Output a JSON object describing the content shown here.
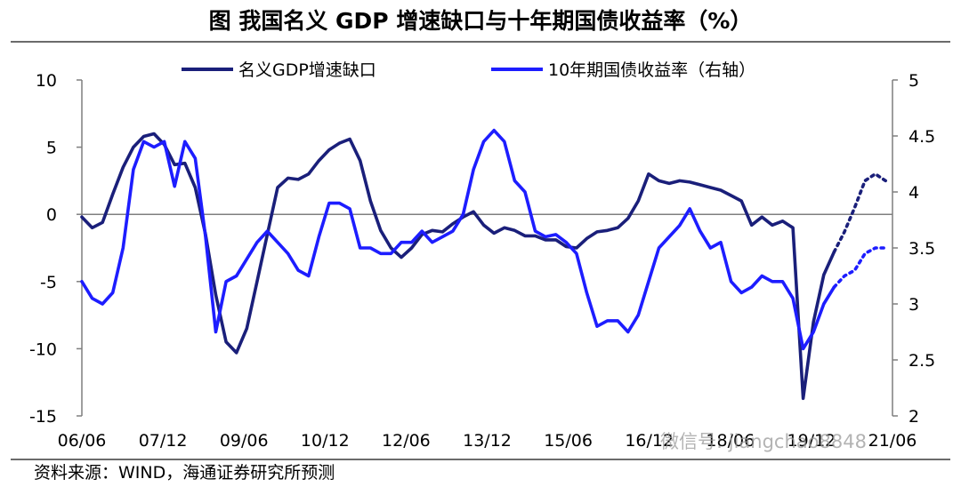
{
  "title": "图  我国名义 GDP 增速缺口与十年期国债收益率（%）",
  "footer": "资料来源：WIND，海通证券研究所预测",
  "watermark": "微信号: jiangchao8848",
  "colors": {
    "gdp_gap": "#1a1f7a",
    "bond_yield": "#1d1dff",
    "axis": "#7f7f7f",
    "zero_line": "#7f7f7f"
  },
  "chart_data": {
    "type": "line",
    "title": "我国名义 GDP 增速缺口与十年期国债收益率（%）",
    "x_tick_labels": [
      "06/06",
      "07/12",
      "09/06",
      "10/12",
      "12/06",
      "13/12",
      "15/06",
      "16/12",
      "18/06",
      "19/12",
      "21/06"
    ],
    "y_left": {
      "ticks": [
        10,
        5,
        0,
        -5,
        -10,
        -15
      ],
      "ylim": [
        -15,
        10
      ]
    },
    "y_right": {
      "ticks": [
        5,
        4.5,
        4,
        3.5,
        3,
        2.5,
        2
      ],
      "ylim": [
        2,
        5
      ]
    },
    "legend_position": "top-center",
    "grid": false,
    "series": [
      {
        "name": "名义GDP增速缺口",
        "axis": "left",
        "points": [
          [
            0,
            -0.2
          ],
          [
            0.3,
            -1.0
          ],
          [
            0.6,
            -0.6
          ],
          [
            0.9,
            1.5
          ],
          [
            1.2,
            3.5
          ],
          [
            1.5,
            5.0
          ],
          [
            1.8,
            5.8
          ],
          [
            2.1,
            6.0
          ],
          [
            2.4,
            5.2
          ],
          [
            2.7,
            3.7
          ],
          [
            3.0,
            3.8
          ],
          [
            3.3,
            2.0
          ],
          [
            3.6,
            -1.5
          ],
          [
            3.9,
            -6.0
          ],
          [
            4.2,
            -9.5
          ],
          [
            4.5,
            -10.3
          ],
          [
            4.8,
            -8.5
          ],
          [
            5.1,
            -5.0
          ],
          [
            5.4,
            -1.5
          ],
          [
            5.7,
            2.0
          ],
          [
            6.0,
            2.7
          ],
          [
            6.3,
            2.6
          ],
          [
            6.6,
            3.0
          ],
          [
            6.9,
            4.0
          ],
          [
            7.2,
            4.8
          ],
          [
            7.5,
            5.3
          ],
          [
            7.8,
            5.6
          ],
          [
            8.1,
            4.0
          ],
          [
            8.4,
            1.0
          ],
          [
            8.7,
            -1.2
          ],
          [
            9.0,
            -2.5
          ],
          [
            9.3,
            -3.2
          ],
          [
            9.6,
            -2.5
          ],
          [
            9.9,
            -1.5
          ],
          [
            10.2,
            -1.2
          ],
          [
            10.5,
            -1.3
          ],
          [
            10.8,
            -0.7
          ],
          [
            11.1,
            -0.2
          ],
          [
            11.4,
            0.2
          ],
          [
            11.7,
            -0.8
          ],
          [
            12.0,
            -1.4
          ],
          [
            12.3,
            -1.0
          ],
          [
            12.6,
            -1.2
          ],
          [
            12.9,
            -1.6
          ],
          [
            13.2,
            -1.6
          ],
          [
            13.5,
            -1.9
          ],
          [
            13.8,
            -1.9
          ],
          [
            14.1,
            -2.4
          ],
          [
            14.4,
            -2.5
          ],
          [
            14.7,
            -1.8
          ],
          [
            15.0,
            -1.3
          ],
          [
            15.3,
            -1.2
          ],
          [
            15.6,
            -1.0
          ],
          [
            15.9,
            -0.3
          ],
          [
            16.2,
            1.0
          ],
          [
            16.5,
            3.0
          ],
          [
            16.8,
            2.5
          ],
          [
            17.1,
            2.3
          ],
          [
            17.4,
            2.5
          ],
          [
            17.7,
            2.4
          ],
          [
            18.0,
            2.2
          ],
          [
            18.3,
            2.0
          ],
          [
            18.6,
            1.8
          ],
          [
            18.9,
            1.4
          ],
          [
            19.2,
            1.0
          ],
          [
            19.5,
            -0.8
          ],
          [
            19.8,
            -0.2
          ],
          [
            20.1,
            -0.8
          ],
          [
            20.4,
            -0.5
          ],
          [
            20.7,
            -1.0
          ],
          [
            21.0,
            -13.7
          ],
          [
            21.3,
            -8.0
          ],
          [
            21.6,
            -4.5
          ],
          [
            21.9,
            -2.8
          ]
        ],
        "forecast_points": [
          [
            21.9,
            -2.8
          ],
          [
            22.2,
            -1.3
          ],
          [
            22.5,
            0.5
          ],
          [
            22.8,
            2.5
          ],
          [
            23.1,
            3.0
          ],
          [
            23.4,
            2.5
          ]
        ]
      },
      {
        "name": "10年期国债收益率（右轴）",
        "axis": "right",
        "points": [
          [
            0,
            3.2
          ],
          [
            0.3,
            3.05
          ],
          [
            0.6,
            3.0
          ],
          [
            0.9,
            3.1
          ],
          [
            1.2,
            3.5
          ],
          [
            1.5,
            4.2
          ],
          [
            1.8,
            4.45
          ],
          [
            2.1,
            4.4
          ],
          [
            2.4,
            4.45
          ],
          [
            2.7,
            4.05
          ],
          [
            3.0,
            4.45
          ],
          [
            3.3,
            4.3
          ],
          [
            3.6,
            3.6
          ],
          [
            3.9,
            2.75
          ],
          [
            4.2,
            3.2
          ],
          [
            4.5,
            3.25
          ],
          [
            4.8,
            3.4
          ],
          [
            5.1,
            3.55
          ],
          [
            5.4,
            3.65
          ],
          [
            5.7,
            3.55
          ],
          [
            6.0,
            3.45
          ],
          [
            6.3,
            3.3
          ],
          [
            6.6,
            3.25
          ],
          [
            6.9,
            3.6
          ],
          [
            7.2,
            3.9
          ],
          [
            7.5,
            3.9
          ],
          [
            7.8,
            3.85
          ],
          [
            8.1,
            3.5
          ],
          [
            8.4,
            3.5
          ],
          [
            8.7,
            3.45
          ],
          [
            9.0,
            3.45
          ],
          [
            9.3,
            3.55
          ],
          [
            9.6,
            3.55
          ],
          [
            9.9,
            3.65
          ],
          [
            10.2,
            3.55
          ],
          [
            10.5,
            3.6
          ],
          [
            10.8,
            3.65
          ],
          [
            11.1,
            3.8
          ],
          [
            11.4,
            4.2
          ],
          [
            11.7,
            4.45
          ],
          [
            12.0,
            4.55
          ],
          [
            12.3,
            4.45
          ],
          [
            12.6,
            4.1
          ],
          [
            12.9,
            4.0
          ],
          [
            13.2,
            3.65
          ],
          [
            13.5,
            3.6
          ],
          [
            13.8,
            3.62
          ],
          [
            14.1,
            3.55
          ],
          [
            14.4,
            3.45
          ],
          [
            14.7,
            3.1
          ],
          [
            15.0,
            2.8
          ],
          [
            15.3,
            2.85
          ],
          [
            15.6,
            2.85
          ],
          [
            15.9,
            2.75
          ],
          [
            16.2,
            2.9
          ],
          [
            16.5,
            3.2
          ],
          [
            16.8,
            3.5
          ],
          [
            17.1,
            3.6
          ],
          [
            17.4,
            3.7
          ],
          [
            17.7,
            3.85
          ],
          [
            18.0,
            3.65
          ],
          [
            18.3,
            3.5
          ],
          [
            18.6,
            3.55
          ],
          [
            18.9,
            3.2
          ],
          [
            19.2,
            3.1
          ],
          [
            19.5,
            3.15
          ],
          [
            19.8,
            3.25
          ],
          [
            20.1,
            3.2
          ],
          [
            20.4,
            3.2
          ],
          [
            20.7,
            3.05
          ],
          [
            21.0,
            2.6
          ],
          [
            21.3,
            2.75
          ],
          [
            21.6,
            3.0
          ],
          [
            21.9,
            3.15
          ]
        ],
        "forecast_points": [
          [
            21.9,
            3.15
          ],
          [
            22.2,
            3.25
          ],
          [
            22.5,
            3.3
          ],
          [
            22.8,
            3.45
          ],
          [
            23.1,
            3.5
          ],
          [
            23.4,
            3.5
          ]
        ]
      }
    ]
  }
}
